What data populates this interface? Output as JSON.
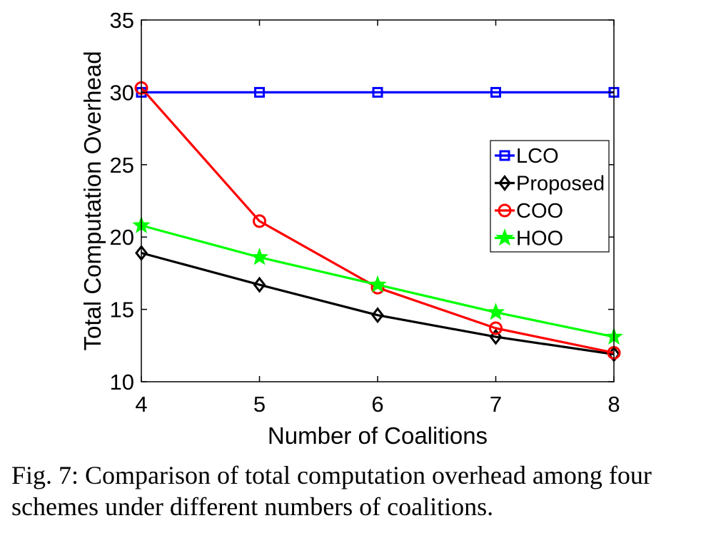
{
  "chart_data": {
    "type": "line",
    "x": [
      4,
      5,
      6,
      7,
      8
    ],
    "xlabel": "Number of Coalitions",
    "ylabel": "Total Computation Overhead",
    "xlim": [
      4,
      8
    ],
    "ylim": [
      10,
      35
    ],
    "xticks": [
      "4",
      "5",
      "6",
      "7",
      "8"
    ],
    "yticks": [
      "10",
      "15",
      "20",
      "25",
      "30",
      "35"
    ],
    "grid": false,
    "legend_position": "right",
    "series": [
      {
        "name": "LCO",
        "color": "#0000FF",
        "marker": "square",
        "values": [
          30,
          30,
          30,
          30,
          30
        ]
      },
      {
        "name": "Proposed",
        "color": "#000000",
        "marker": "diamond",
        "values": [
          18.9,
          16.7,
          14.6,
          13.1,
          11.9
        ]
      },
      {
        "name": "COO",
        "color": "#FF0000",
        "marker": "circle",
        "values": [
          30.3,
          21.1,
          16.5,
          13.7,
          12.0
        ]
      },
      {
        "name": "HOO",
        "color": "#00FF00",
        "marker": "star",
        "values": [
          20.8,
          18.6,
          16.7,
          14.8,
          13.1
        ]
      }
    ]
  },
  "caption": "Fig. 7: Comparison of total computation overhead among four schemes under different numbers of coalitions."
}
